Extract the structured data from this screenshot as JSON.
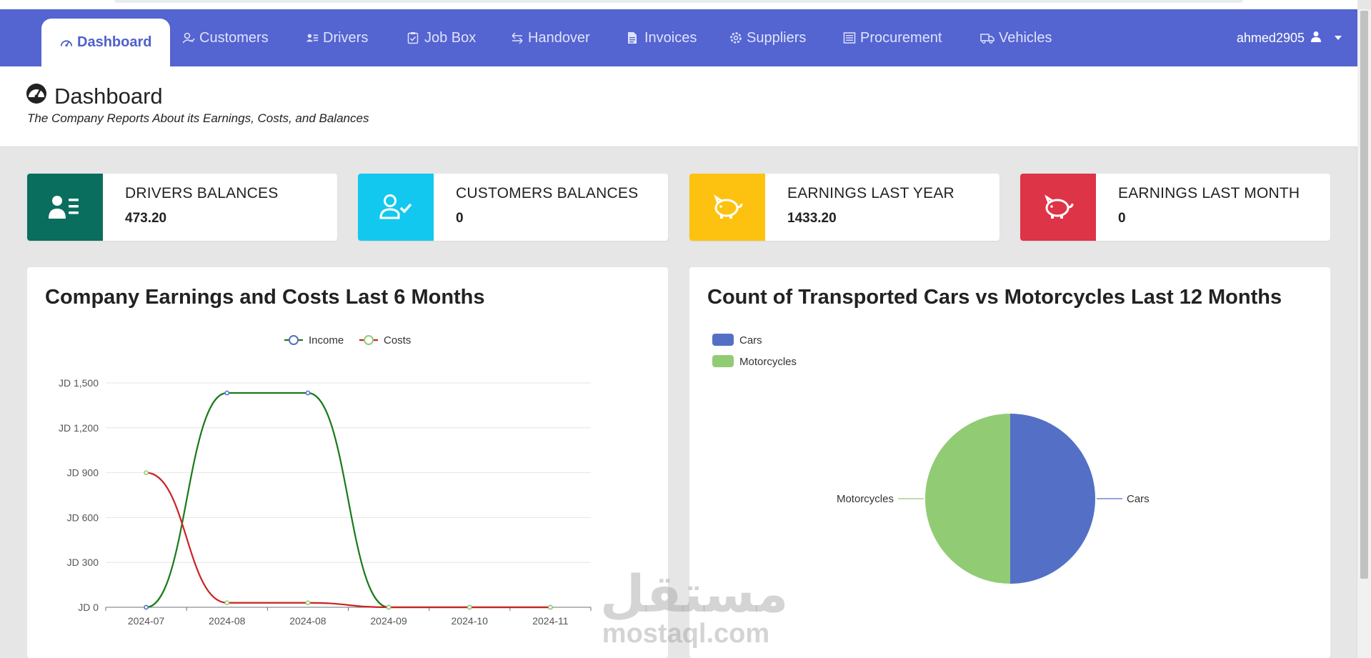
{
  "nav": {
    "tabs": [
      {
        "label": "Dashboard",
        "icon": "gauge-icon"
      },
      {
        "label": "Customers",
        "icon": "user-check-icon"
      },
      {
        "label": "Drivers",
        "icon": "id-card-icon"
      },
      {
        "label": "Job Box",
        "icon": "clipboard-icon"
      },
      {
        "label": "Handover",
        "icon": "swap-arrows-icon"
      },
      {
        "label": "Invoices",
        "icon": "document-icon"
      },
      {
        "label": "Suppliers",
        "icon": "gear-icon"
      },
      {
        "label": "Procurement",
        "icon": "list-icon"
      },
      {
        "label": "Vehicles",
        "icon": "truck-icon"
      }
    ],
    "active_tab": "Dashboard",
    "user": "ahmed2905"
  },
  "header": {
    "title": "Dashboard",
    "subtitle": "The Company Reports About its Earnings, Costs, and Balances"
  },
  "cards": [
    {
      "label": "DRIVERS BALANCES",
      "value": "473.20",
      "color": "#0a6e5f",
      "icon": "id-card-icon"
    },
    {
      "label": "CUSTOMERS BALANCES",
      "value": "0",
      "color": "#12c8ef",
      "icon": "user-check-icon"
    },
    {
      "label": "EARNINGS LAST YEAR",
      "value": "1433.20",
      "color": "#fdc210",
      "icon": "piggy-bank-icon"
    },
    {
      "label": "EARNINGS LAST MONTH",
      "value": "0",
      "color": "#de3447",
      "icon": "piggy-bank-icon"
    }
  ],
  "panels": {
    "left_title": "Company Earnings and Costs Last 6 Months",
    "right_title": "Count of Transported Cars vs Motorcycles Last 12 Months"
  },
  "chart_data": [
    {
      "type": "line",
      "title": "Company Earnings and Costs Last 6 Months",
      "x": [
        "2024-07",
        "2024-08",
        "2024-08",
        "2024-09",
        "2024-10",
        "2024-11"
      ],
      "series": [
        {
          "name": "Income",
          "values": [
            0,
            1433.2,
            1433.2,
            0,
            0,
            0
          ],
          "color": "#1a7a1a",
          "marker": "#5470c6"
        },
        {
          "name": "Costs",
          "values": [
            900,
            30,
            30,
            0,
            0,
            0
          ],
          "color": "#cc2222",
          "marker": "#91cc75"
        }
      ],
      "yticks": [
        "JD 0",
        "JD 300",
        "JD 600",
        "JD 900",
        "JD 1,200",
        "JD 1,500"
      ],
      "ylim": [
        0,
        1500
      ],
      "legend": "top-center",
      "grid": true
    },
    {
      "type": "pie",
      "title": "Count of Transported Cars vs Motorcycles Last 12 Months",
      "labels": [
        "Cars",
        "Motorcycles"
      ],
      "values": [
        1,
        1
      ],
      "colors": [
        "#5470c6",
        "#91cc75"
      ],
      "legend": "top-left"
    }
  ],
  "watermark": {
    "arabic": "مستقل",
    "latin": "mostaql.com"
  }
}
